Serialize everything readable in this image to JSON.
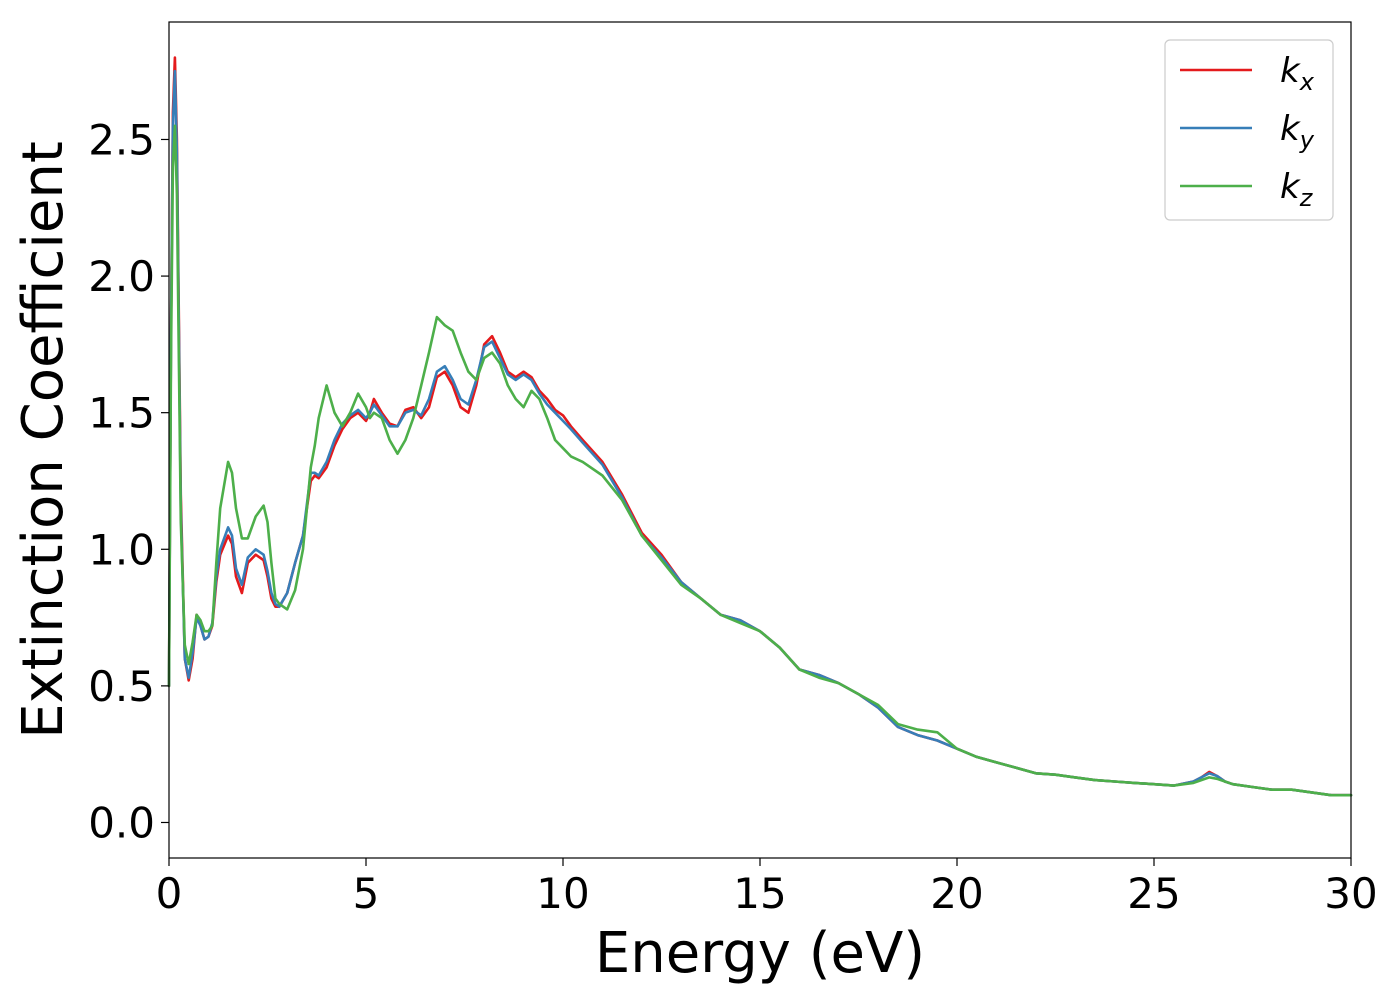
{
  "chart_data": {
    "type": "line",
    "title": "",
    "xlabel": "Energy (eV)",
    "ylabel": "Extinction Coefficient",
    "xlim": [
      0,
      30
    ],
    "ylim": [
      -0.13,
      2.93
    ],
    "xticks": [
      0,
      5,
      10,
      15,
      20,
      25,
      30
    ],
    "xtick_labels": [
      "0",
      "5",
      "10",
      "15",
      "20",
      "25",
      "30"
    ],
    "yticks": [
      0.0,
      0.5,
      1.0,
      1.5,
      2.0,
      2.5
    ],
    "ytick_labels": [
      "0.0",
      "0.5",
      "1.0",
      "1.5",
      "2.0",
      "2.5"
    ],
    "grid": false,
    "legend_position": "top-right",
    "series": [
      {
        "name": "k",
        "subscript": "x",
        "color": "#e41a1c",
        "x": [
          0,
          0.05,
          0.1,
          0.15,
          0.2,
          0.3,
          0.4,
          0.5,
          0.6,
          0.7,
          0.8,
          0.9,
          1.0,
          1.1,
          1.2,
          1.3,
          1.5,
          1.6,
          1.7,
          1.85,
          2.0,
          2.2,
          2.4,
          2.5,
          2.6,
          2.7,
          2.8,
          3.0,
          3.2,
          3.4,
          3.6,
          3.7,
          3.8,
          4.0,
          4.2,
          4.4,
          4.6,
          4.8,
          5.0,
          5.1,
          5.2,
          5.4,
          5.6,
          5.8,
          6.0,
          6.2,
          6.4,
          6.6,
          6.8,
          7.0,
          7.2,
          7.4,
          7.6,
          7.8,
          8.0,
          8.2,
          8.4,
          8.6,
          8.8,
          9.0,
          9.2,
          9.4,
          9.6,
          9.8,
          10.0,
          10.2,
          10.5,
          11.0,
          11.5,
          12.0,
          12.5,
          13.0,
          13.5,
          14.0,
          14.5,
          15.0,
          15.5,
          16.0,
          16.5,
          17.0,
          17.5,
          18.0,
          18.5,
          19.0,
          19.5,
          20.0,
          20.5,
          21.0,
          21.5,
          22.0,
          22.5,
          23.0,
          23.5,
          24.0,
          24.5,
          25.0,
          25.5,
          26.0,
          26.2,
          26.4,
          26.6,
          26.8,
          27.0,
          27.5,
          28.0,
          28.5,
          29.0,
          29.5,
          30.0
        ],
        "y": [
          0.5,
          1.8,
          2.6,
          2.8,
          2.5,
          1.2,
          0.6,
          0.52,
          0.6,
          0.76,
          0.72,
          0.67,
          0.68,
          0.72,
          0.88,
          0.98,
          1.05,
          1.02,
          0.9,
          0.84,
          0.95,
          0.98,
          0.96,
          0.9,
          0.82,
          0.79,
          0.79,
          0.84,
          0.95,
          1.05,
          1.25,
          1.27,
          1.26,
          1.3,
          1.38,
          1.44,
          1.48,
          1.5,
          1.47,
          1.5,
          1.55,
          1.5,
          1.46,
          1.45,
          1.51,
          1.52,
          1.48,
          1.52,
          1.63,
          1.65,
          1.6,
          1.52,
          1.5,
          1.6,
          1.75,
          1.78,
          1.72,
          1.65,
          1.63,
          1.65,
          1.63,
          1.58,
          1.55,
          1.51,
          1.49,
          1.45,
          1.4,
          1.32,
          1.2,
          1.06,
          0.98,
          0.88,
          0.82,
          0.76,
          0.74,
          0.7,
          0.64,
          0.56,
          0.54,
          0.51,
          0.47,
          0.42,
          0.35,
          0.32,
          0.3,
          0.27,
          0.24,
          0.22,
          0.2,
          0.18,
          0.175,
          0.165,
          0.155,
          0.15,
          0.145,
          0.14,
          0.135,
          0.15,
          0.165,
          0.185,
          0.17,
          0.15,
          0.14,
          0.13,
          0.12,
          0.12,
          0.11,
          0.1,
          0.1
        ]
      },
      {
        "name": "k",
        "subscript": "y",
        "color": "#377eb8",
        "x": [
          0,
          0.05,
          0.1,
          0.15,
          0.2,
          0.3,
          0.4,
          0.5,
          0.6,
          0.7,
          0.8,
          0.9,
          1.0,
          1.1,
          1.2,
          1.3,
          1.5,
          1.6,
          1.7,
          1.85,
          2.0,
          2.2,
          2.4,
          2.5,
          2.6,
          2.7,
          2.8,
          3.0,
          3.2,
          3.4,
          3.6,
          3.7,
          3.8,
          4.0,
          4.2,
          4.4,
          4.6,
          4.8,
          5.0,
          5.1,
          5.2,
          5.4,
          5.6,
          5.8,
          6.0,
          6.2,
          6.4,
          6.6,
          6.8,
          7.0,
          7.2,
          7.4,
          7.6,
          7.8,
          8.0,
          8.2,
          8.4,
          8.6,
          8.8,
          9.0,
          9.2,
          9.4,
          9.6,
          9.8,
          10.0,
          10.2,
          10.5,
          11.0,
          11.5,
          12.0,
          12.5,
          13.0,
          13.5,
          14.0,
          14.5,
          15.0,
          15.5,
          16.0,
          16.5,
          17.0,
          17.5,
          18.0,
          18.5,
          19.0,
          19.5,
          20.0,
          20.5,
          21.0,
          21.5,
          22.0,
          22.5,
          23.0,
          23.5,
          24.0,
          24.5,
          25.0,
          25.5,
          26.0,
          26.2,
          26.4,
          26.6,
          26.8,
          27.0,
          27.5,
          28.0,
          28.5,
          29.0,
          29.5,
          30.0
        ],
        "y": [
          0.5,
          1.8,
          2.55,
          2.75,
          2.45,
          1.15,
          0.6,
          0.53,
          0.62,
          0.75,
          0.72,
          0.67,
          0.68,
          0.73,
          0.9,
          1.0,
          1.08,
          1.05,
          0.93,
          0.87,
          0.97,
          1.0,
          0.98,
          0.92,
          0.84,
          0.8,
          0.79,
          0.84,
          0.95,
          1.05,
          1.28,
          1.28,
          1.27,
          1.32,
          1.4,
          1.46,
          1.49,
          1.51,
          1.48,
          1.5,
          1.53,
          1.49,
          1.45,
          1.45,
          1.5,
          1.51,
          1.49,
          1.55,
          1.65,
          1.67,
          1.62,
          1.55,
          1.53,
          1.62,
          1.74,
          1.76,
          1.7,
          1.64,
          1.62,
          1.64,
          1.62,
          1.57,
          1.53,
          1.5,
          1.47,
          1.44,
          1.39,
          1.31,
          1.19,
          1.05,
          0.97,
          0.88,
          0.82,
          0.76,
          0.74,
          0.7,
          0.64,
          0.56,
          0.54,
          0.51,
          0.47,
          0.42,
          0.35,
          0.32,
          0.3,
          0.27,
          0.24,
          0.22,
          0.2,
          0.18,
          0.175,
          0.165,
          0.155,
          0.15,
          0.145,
          0.14,
          0.135,
          0.15,
          0.165,
          0.18,
          0.17,
          0.15,
          0.14,
          0.13,
          0.12,
          0.12,
          0.11,
          0.1,
          0.1
        ]
      },
      {
        "name": "k",
        "subscript": "z",
        "color": "#4daf4a",
        "x": [
          0,
          0.05,
          0.1,
          0.15,
          0.2,
          0.3,
          0.4,
          0.5,
          0.6,
          0.7,
          0.8,
          0.9,
          1.0,
          1.1,
          1.2,
          1.3,
          1.5,
          1.6,
          1.7,
          1.85,
          2.0,
          2.2,
          2.4,
          2.5,
          2.6,
          2.7,
          2.8,
          3.0,
          3.2,
          3.4,
          3.6,
          3.7,
          3.8,
          4.0,
          4.2,
          4.4,
          4.6,
          4.8,
          5.0,
          5.1,
          5.2,
          5.4,
          5.6,
          5.8,
          6.0,
          6.2,
          6.4,
          6.6,
          6.8,
          7.0,
          7.2,
          7.4,
          7.6,
          7.8,
          8.0,
          8.2,
          8.4,
          8.6,
          8.8,
          9.0,
          9.2,
          9.4,
          9.6,
          9.8,
          10.0,
          10.2,
          10.5,
          11.0,
          11.5,
          12.0,
          12.5,
          13.0,
          13.5,
          14.0,
          14.5,
          15.0,
          15.5,
          16.0,
          16.5,
          17.0,
          17.5,
          18.0,
          18.5,
          19.0,
          19.5,
          20.0,
          20.5,
          21.0,
          21.5,
          22.0,
          22.5,
          23.0,
          23.5,
          24.0,
          24.5,
          25.0,
          25.5,
          26.0,
          26.2,
          26.4,
          26.6,
          26.8,
          27.0,
          27.5,
          28.0,
          28.5,
          29.0,
          29.5,
          30.0
        ],
        "y": [
          0.5,
          1.7,
          2.4,
          2.55,
          2.3,
          1.1,
          0.65,
          0.58,
          0.66,
          0.76,
          0.74,
          0.7,
          0.7,
          0.72,
          0.95,
          1.15,
          1.32,
          1.28,
          1.15,
          1.04,
          1.04,
          1.12,
          1.16,
          1.1,
          0.95,
          0.82,
          0.8,
          0.78,
          0.85,
          1.0,
          1.3,
          1.38,
          1.48,
          1.6,
          1.5,
          1.45,
          1.5,
          1.57,
          1.52,
          1.48,
          1.5,
          1.48,
          1.4,
          1.35,
          1.4,
          1.48,
          1.6,
          1.72,
          1.85,
          1.82,
          1.8,
          1.72,
          1.65,
          1.62,
          1.7,
          1.72,
          1.68,
          1.6,
          1.55,
          1.52,
          1.58,
          1.55,
          1.48,
          1.4,
          1.37,
          1.34,
          1.32,
          1.27,
          1.18,
          1.05,
          0.96,
          0.87,
          0.82,
          0.76,
          0.73,
          0.7,
          0.64,
          0.56,
          0.53,
          0.51,
          0.47,
          0.43,
          0.36,
          0.34,
          0.33,
          0.27,
          0.24,
          0.22,
          0.2,
          0.18,
          0.175,
          0.165,
          0.155,
          0.15,
          0.145,
          0.14,
          0.135,
          0.145,
          0.155,
          0.165,
          0.16,
          0.15,
          0.14,
          0.13,
          0.12,
          0.12,
          0.11,
          0.1,
          0.1
        ]
      }
    ]
  }
}
